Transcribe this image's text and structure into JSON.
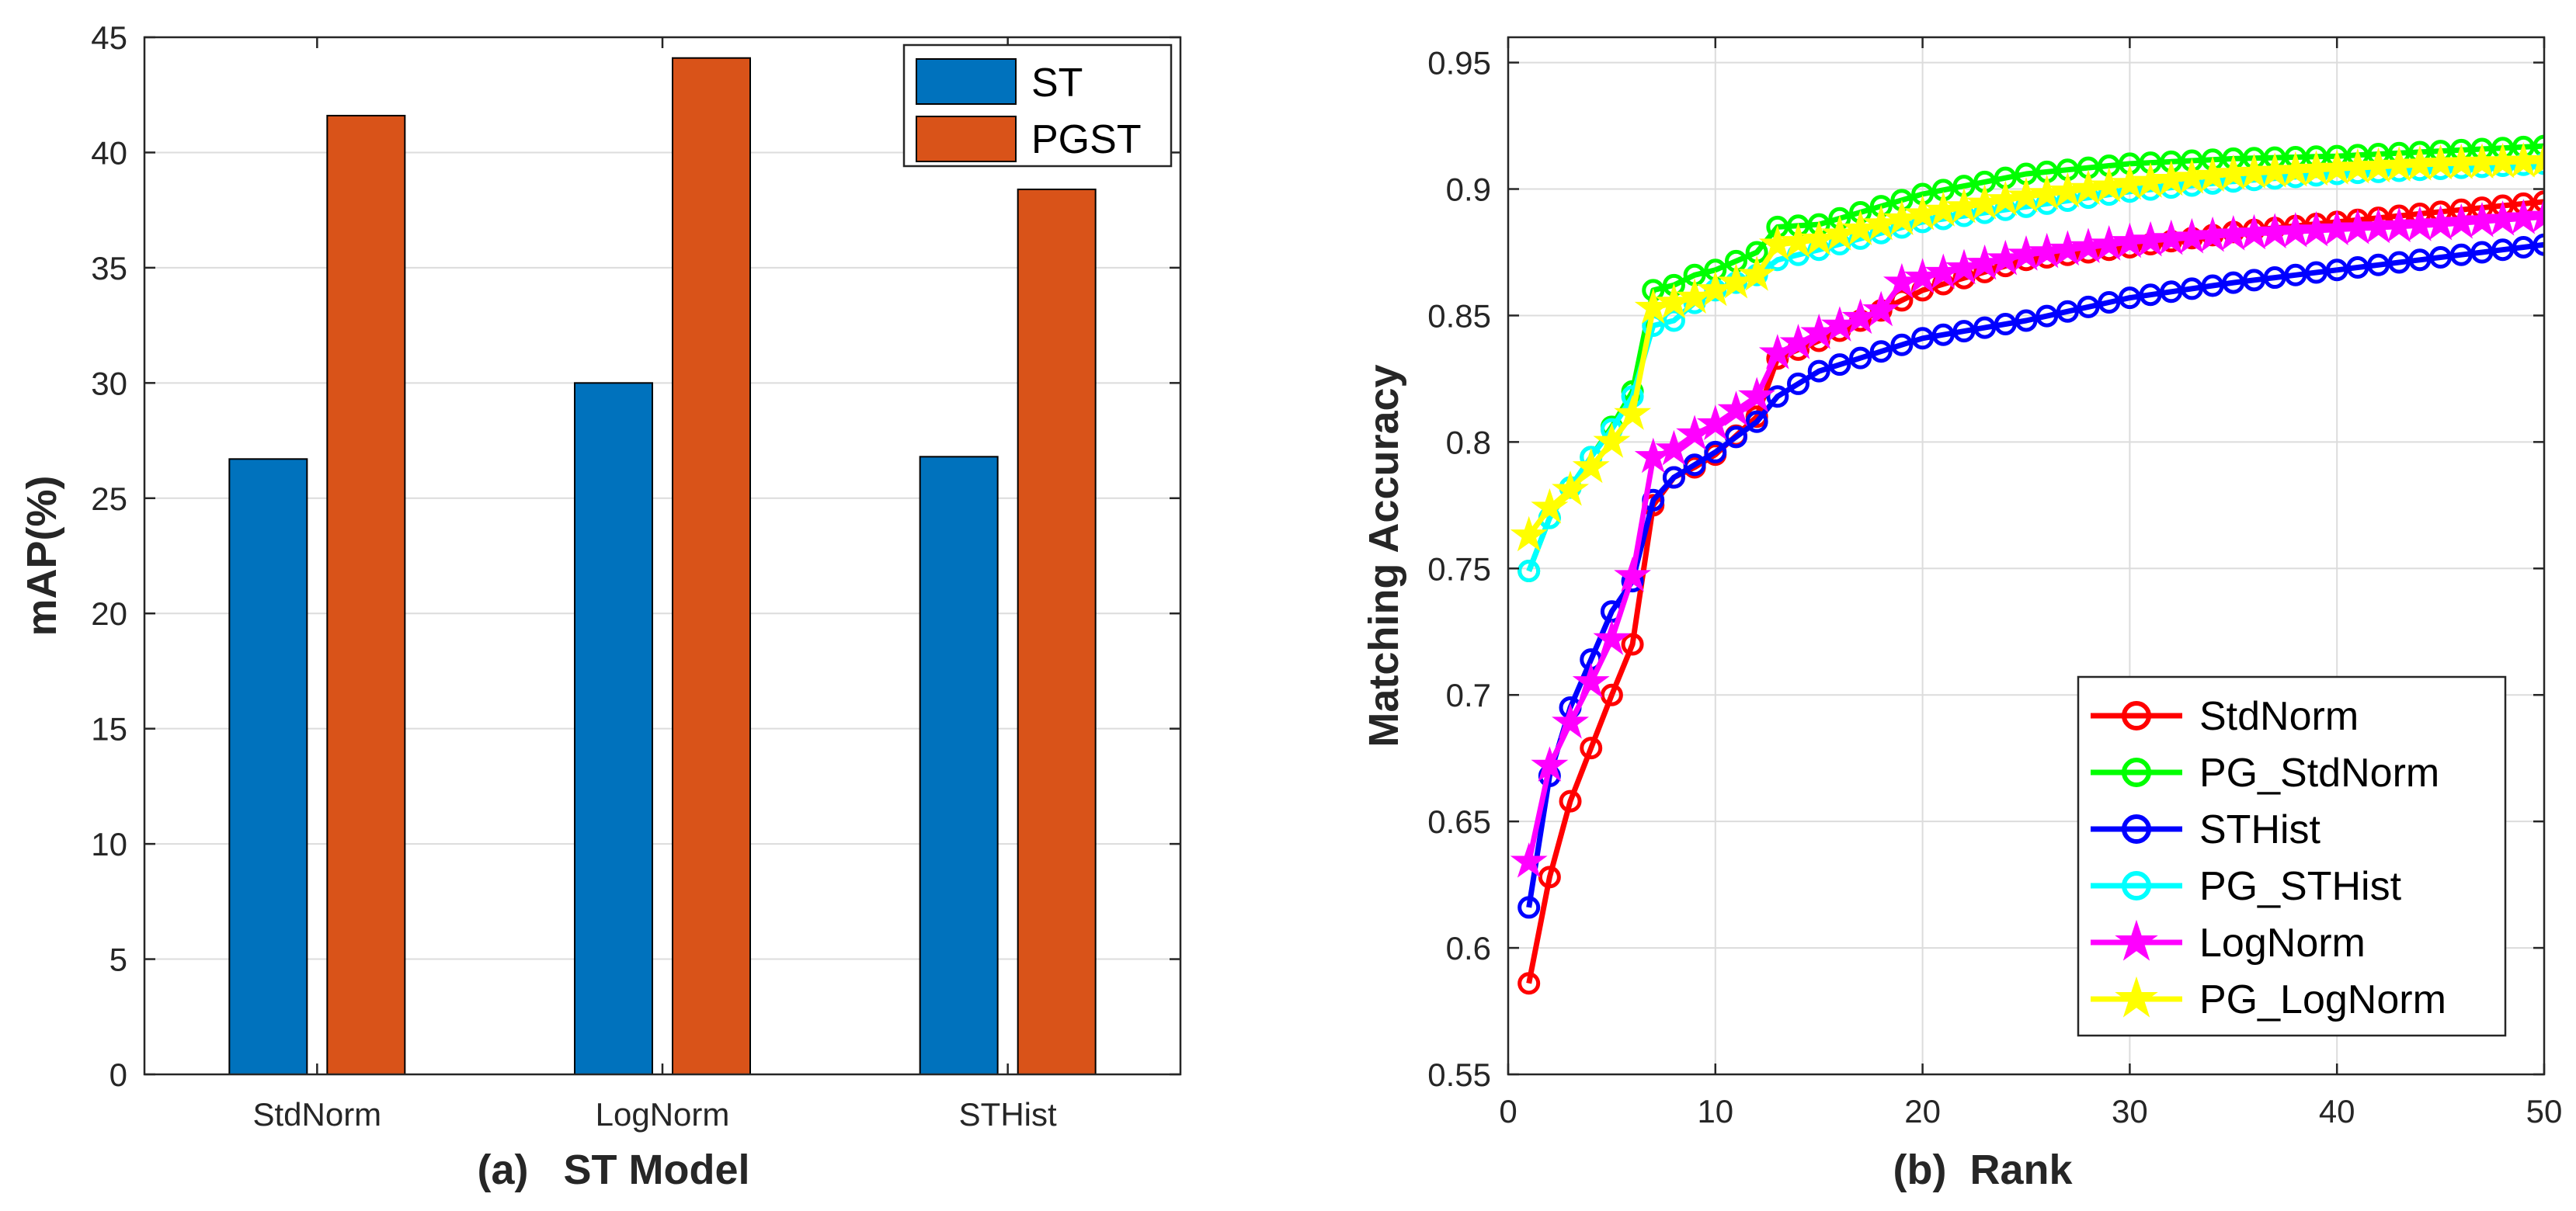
{
  "colors": {
    "ST": "#0072BD",
    "PGST": "#D95319",
    "grid": "#dcdcdc",
    "axis": "#262626"
  },
  "chart_data": [
    {
      "type": "bar",
      "categories": [
        "StdNorm",
        "LogNorm",
        "STHist"
      ],
      "series": [
        {
          "name": "ST",
          "values": [
            26.7,
            30.0,
            26.8
          ]
        },
        {
          "name": "PGST",
          "values": [
            41.6,
            44.1,
            38.4
          ]
        }
      ],
      "ylabel": "mAP(%)",
      "xlabel": "(a)   ST Model",
      "ylim": [
        0,
        45
      ],
      "yticks": [
        0,
        5,
        10,
        15,
        20,
        25,
        30,
        35,
        40,
        45
      ],
      "grid": true,
      "legend": "top-right"
    },
    {
      "type": "line",
      "xlabel": "(b)  Rank",
      "ylabel": "Matching Accuracy",
      "xlim": [
        0,
        50
      ],
      "ylim": [
        0.55,
        0.96
      ],
      "xticks": [
        0,
        10,
        20,
        30,
        40,
        50
      ],
      "yticks": [
        0.55,
        0.6,
        0.65,
        0.7,
        0.75,
        0.8,
        0.85,
        0.9,
        0.95
      ],
      "ytick_labels": [
        "0.55",
        "0.6",
        "0.65",
        "0.7",
        "0.75",
        "0.8",
        "0.85",
        "0.9",
        "0.95"
      ],
      "grid": true,
      "legend": "bottom-right",
      "series": [
        {
          "name": "StdNorm",
          "color": "#ff0000",
          "marker": "circle",
          "anchors": [
            [
              1,
              0.586
            ],
            [
              2,
              0.628
            ],
            [
              3,
              0.658
            ],
            [
              4,
              0.679
            ],
            [
              5,
              0.7
            ],
            [
              6,
              0.72
            ],
            [
              7,
              0.775
            ],
            [
              8,
              0.786
            ],
            [
              9,
              0.79
            ],
            [
              10,
              0.795
            ],
            [
              12,
              0.81
            ],
            [
              13,
              0.833
            ],
            [
              15,
              0.84
            ],
            [
              20,
              0.86
            ],
            [
              25,
              0.872
            ],
            [
              30,
              0.877
            ],
            [
              35,
              0.883
            ],
            [
              40,
              0.887
            ],
            [
              45,
              0.891
            ],
            [
              50,
              0.895
            ]
          ]
        },
        {
          "name": "PG_StdNorm",
          "color": "#00ff00",
          "marker": "circle",
          "anchors": [
            [
              1,
              0.749
            ],
            [
              2,
              0.77
            ],
            [
              3,
              0.782
            ],
            [
              4,
              0.794
            ],
            [
              5,
              0.806
            ],
            [
              6,
              0.82
            ],
            [
              7,
              0.86
            ],
            [
              8,
              0.862
            ],
            [
              9,
              0.866
            ],
            [
              10,
              0.868
            ],
            [
              12,
              0.875
            ],
            [
              13,
              0.885
            ],
            [
              15,
              0.886
            ],
            [
              20,
              0.898
            ],
            [
              25,
              0.906
            ],
            [
              30,
              0.91
            ],
            [
              35,
              0.912
            ],
            [
              40,
              0.913
            ],
            [
              45,
              0.915
            ],
            [
              50,
              0.917
            ]
          ]
        },
        {
          "name": "STHist",
          "color": "#0000ff",
          "marker": "circle",
          "anchors": [
            [
              1,
              0.616
            ],
            [
              2,
              0.668
            ],
            [
              3,
              0.695
            ],
            [
              4,
              0.714
            ],
            [
              5,
              0.733
            ],
            [
              6,
              0.745
            ],
            [
              7,
              0.777
            ],
            [
              8,
              0.786
            ],
            [
              9,
              0.791
            ],
            [
              10,
              0.796
            ],
            [
              12,
              0.808
            ],
            [
              13,
              0.818
            ],
            [
              15,
              0.828
            ],
            [
              20,
              0.841
            ],
            [
              25,
              0.848
            ],
            [
              30,
              0.857
            ],
            [
              35,
              0.863
            ],
            [
              40,
              0.868
            ],
            [
              45,
              0.873
            ],
            [
              50,
              0.878
            ]
          ]
        },
        {
          "name": "PG_STHist",
          "color": "#00ffff",
          "marker": "circle",
          "anchors": [
            [
              1,
              0.749
            ],
            [
              2,
              0.77
            ],
            [
              3,
              0.782
            ],
            [
              4,
              0.794
            ],
            [
              5,
              0.805
            ],
            [
              6,
              0.818
            ],
            [
              7,
              0.846
            ],
            [
              8,
              0.848
            ],
            [
              9,
              0.855
            ],
            [
              10,
              0.86
            ],
            [
              12,
              0.866
            ],
            [
              13,
              0.872
            ],
            [
              15,
              0.876
            ],
            [
              20,
              0.887
            ],
            [
              25,
              0.893
            ],
            [
              30,
              0.899
            ],
            [
              35,
              0.903
            ],
            [
              40,
              0.906
            ],
            [
              45,
              0.908
            ],
            [
              50,
              0.91
            ]
          ]
        },
        {
          "name": "LogNorm",
          "color": "#ff00ff",
          "marker": "star",
          "anchors": [
            [
              1,
              0.634
            ],
            [
              2,
              0.672
            ],
            [
              3,
              0.689
            ],
            [
              4,
              0.705
            ],
            [
              5,
              0.722
            ],
            [
              6,
              0.747
            ],
            [
              7,
              0.794
            ],
            [
              8,
              0.797
            ],
            [
              9,
              0.803
            ],
            [
              10,
              0.807
            ],
            [
              12,
              0.818
            ],
            [
              13,
              0.835
            ],
            [
              15,
              0.843
            ],
            [
              18,
              0.852
            ],
            [
              19,
              0.863
            ],
            [
              20,
              0.865
            ],
            [
              25,
              0.874
            ],
            [
              30,
              0.879
            ],
            [
              35,
              0.882
            ],
            [
              40,
              0.884
            ],
            [
              45,
              0.886
            ],
            [
              50,
              0.889
            ]
          ]
        },
        {
          "name": "PG_LogNorm",
          "color": "#ffff00",
          "marker": "star",
          "anchors": [
            [
              1,
              0.763
            ],
            [
              2,
              0.774
            ],
            [
              3,
              0.781
            ],
            [
              4,
              0.79
            ],
            [
              5,
              0.8
            ],
            [
              6,
              0.811
            ],
            [
              7,
              0.853
            ],
            [
              8,
              0.855
            ],
            [
              9,
              0.857
            ],
            [
              10,
              0.86
            ],
            [
              12,
              0.866
            ],
            [
              13,
              0.878
            ],
            [
              15,
              0.88
            ],
            [
              20,
              0.89
            ],
            [
              25,
              0.897
            ],
            [
              30,
              0.902
            ],
            [
              35,
              0.906
            ],
            [
              40,
              0.908
            ],
            [
              45,
              0.91
            ],
            [
              50,
              0.911
            ]
          ]
        }
      ]
    }
  ]
}
